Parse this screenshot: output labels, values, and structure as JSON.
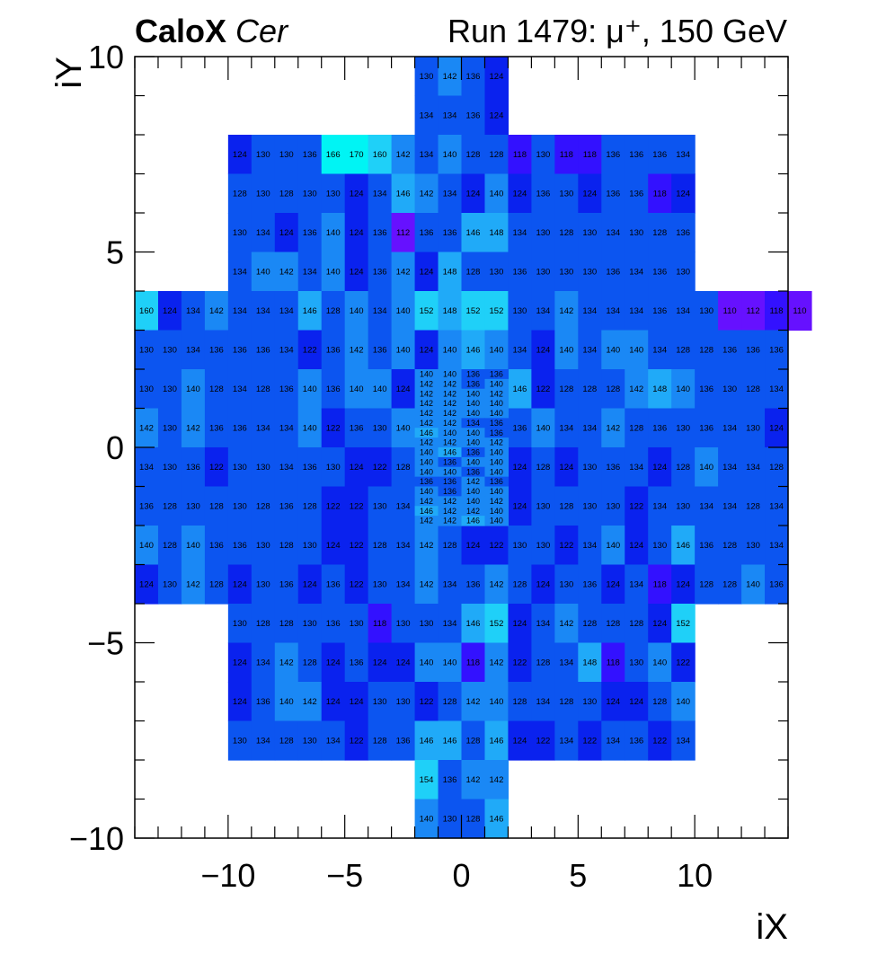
{
  "header": {
    "title_bold": "CaloX",
    "title_italic": "Cer",
    "run_info": "Run 1479:   μ⁺, 150 GeV"
  },
  "chart_data": {
    "type": "heatmap",
    "xlabel": "iX",
    "ylabel": "iY",
    "xlim": [
      -14,
      14
    ],
    "ylim": [
      -10,
      10
    ],
    "x_ticks": [
      -10,
      -5,
      0,
      5,
      10
    ],
    "y_ticks": [
      -10,
      -5,
      0,
      5,
      10
    ],
    "x_tick_labels": [
      "−10",
      "−5",
      "0",
      "5",
      "10"
    ],
    "y_tick_labels": [
      "−10",
      "−5",
      "0",
      "5",
      "10"
    ],
    "colors": {
      "c110": "#6611ff",
      "c118": "#3311ff",
      "c124": "#0a22ee",
      "c132": "#0c55f0",
      "c140": "#1a88f5",
      "c148": "#20aaf8",
      "c156": "#1fd0f8",
      "c164": "#00f4f4"
    },
    "cells": [
      {
        "y": 9.5,
        "x0": -2,
        "values": [
          130,
          142,
          136,
          124
        ]
      },
      {
        "y": 8.5,
        "x0": -2,
        "values": [
          134,
          134,
          136,
          124
        ]
      },
      {
        "y": 7.5,
        "x0": -10,
        "values": [
          124,
          130,
          130,
          136,
          166,
          170,
          160,
          142,
          134,
          140,
          128,
          128,
          118,
          130,
          118,
          118,
          136,
          136,
          136,
          134
        ]
      },
      {
        "y": 6.5,
        "x0": -10,
        "values": [
          128,
          130,
          128,
          130,
          130,
          124,
          134,
          146,
          142,
          134,
          124,
          140,
          124,
          136,
          130,
          124,
          136,
          136,
          118,
          124
        ]
      },
      {
        "y": 5.5,
        "x0": -10,
        "values": [
          130,
          134,
          124,
          136,
          140,
          124,
          136,
          112,
          136,
          136,
          146,
          148,
          134,
          130,
          128,
          130,
          134,
          130,
          128,
          136
        ]
      },
      {
        "y": 4.5,
        "x0": -10,
        "values": [
          134,
          140,
          142,
          134,
          140,
          124,
          136,
          142,
          124,
          148,
          128,
          130,
          136,
          130,
          130,
          130,
          136,
          134,
          136,
          130
        ]
      },
      {
        "y": 3.5,
        "x0": -14,
        "values": [
          160,
          124,
          134,
          142,
          134,
          134,
          134,
          146,
          128,
          140,
          134,
          140,
          152,
          148,
          152,
          152,
          130,
          134,
          142,
          134,
          134,
          134,
          136,
          134,
          130,
          110,
          112,
          118,
          110
        ]
      },
      {
        "y": 2.5,
        "x0": -14,
        "values": [
          130,
          130,
          134,
          136,
          136,
          136,
          134,
          122,
          136,
          142,
          136,
          140,
          124,
          140,
          146,
          140,
          134,
          124,
          140,
          134,
          140,
          140,
          134,
          128,
          128,
          136,
          136,
          136
        ]
      },
      {
        "y": 1.5,
        "x0": -14,
        "values": [
          130,
          130,
          140,
          128,
          134,
          128,
          136,
          140,
          136,
          140,
          140,
          124,
          null,
          null,
          null,
          null,
          146,
          122,
          128,
          128,
          128,
          142,
          148,
          140,
          136,
          130,
          128,
          134
        ]
      },
      {
        "y": 0.5,
        "x0": -14,
        "values": [
          142,
          130,
          142,
          136,
          136,
          134,
          134,
          140,
          122,
          136,
          130,
          140,
          null,
          null,
          null,
          null,
          136,
          140,
          134,
          134,
          142,
          128,
          136,
          130,
          136,
          134,
          130,
          124
        ]
      },
      {
        "y": -0.5,
        "x0": -14,
        "values": [
          134,
          130,
          136,
          122,
          130,
          130,
          134,
          136,
          130,
          124,
          122,
          128,
          null,
          null,
          null,
          null,
          124,
          128,
          124,
          130,
          136,
          134,
          124,
          128,
          140,
          134,
          134,
          128
        ]
      },
      {
        "y": -1.5,
        "x0": -14,
        "values": [
          136,
          128,
          130,
          128,
          130,
          128,
          136,
          128,
          122,
          122,
          130,
          134,
          null,
          null,
          null,
          null,
          124,
          130,
          128,
          130,
          130,
          122,
          134,
          130,
          134,
          134,
          128,
          134
        ]
      },
      {
        "y": -2.5,
        "x0": -14,
        "values": [
          140,
          128,
          140,
          136,
          136,
          130,
          128,
          130,
          124,
          122,
          128,
          134,
          142,
          128,
          124,
          122,
          130,
          130,
          122,
          134,
          140,
          124,
          130,
          146,
          136,
          128,
          130,
          134
        ]
      },
      {
        "y": -3.5,
        "x0": -14,
        "values": [
          124,
          130,
          142,
          128,
          124,
          130,
          136,
          124,
          136,
          122,
          130,
          134,
          142,
          134,
          136,
          142,
          128,
          124,
          130,
          136,
          124,
          134,
          118,
          124,
          128,
          128,
          140,
          136
        ]
      },
      {
        "y": -4.5,
        "x0": -10,
        "values": [
          130,
          128,
          128,
          130,
          136,
          130,
          118,
          130,
          130,
          134,
          146,
          152,
          124,
          134,
          142,
          128,
          128,
          128,
          124,
          152
        ]
      },
      {
        "y": -5.5,
        "x0": -10,
        "values": [
          124,
          134,
          142,
          128,
          124,
          136,
          124,
          124,
          140,
          140,
          118,
          142,
          122,
          128,
          134,
          148,
          118,
          130,
          140,
          122
        ]
      },
      {
        "y": -6.5,
        "x0": -10,
        "values": [
          124,
          136,
          140,
          142,
          124,
          124,
          130,
          130,
          122,
          128,
          142,
          140,
          128,
          134,
          128,
          130,
          124,
          124,
          128,
          140
        ]
      },
      {
        "y": -7.5,
        "x0": -10,
        "values": [
          130,
          134,
          128,
          130,
          134,
          122,
          128,
          136,
          146,
          146,
          128,
          146,
          124,
          122,
          134,
          122,
          134,
          136,
          122,
          134
        ]
      },
      {
        "y": -8.5,
        "x0": -2,
        "values": [
          154,
          136,
          142,
          142
        ]
      },
      {
        "y": -9.5,
        "x0": -2,
        "values": [
          140,
          130,
          128,
          146
        ]
      }
    ],
    "fine_cells": [
      {
        "y": 1.875,
        "x0": -2,
        "values": [
          140,
          140,
          136,
          136
        ]
      },
      {
        "y": 1.625,
        "x0": -2,
        "values": [
          142,
          142,
          136,
          140
        ]
      },
      {
        "y": 1.375,
        "x0": -2,
        "values": [
          142,
          142,
          140,
          142
        ]
      },
      {
        "y": 1.125,
        "x0": -2,
        "values": [
          142,
          142,
          140,
          140
        ]
      },
      {
        "y": 0.875,
        "x0": -2,
        "values": [
          142,
          142,
          140,
          140
        ]
      },
      {
        "y": 0.625,
        "x0": -2,
        "values": [
          142,
          142,
          134,
          136
        ]
      },
      {
        "y": 0.375,
        "x0": -2,
        "values": [
          146,
          140,
          140,
          136
        ]
      },
      {
        "y": 0.125,
        "x0": -2,
        "values": [
          142,
          142,
          140,
          142
        ]
      },
      {
        "y": -0.125,
        "x0": -2,
        "values": [
          140,
          146,
          136,
          140
        ]
      },
      {
        "y": -0.375,
        "x0": -2,
        "values": [
          140,
          136,
          140,
          140
        ]
      },
      {
        "y": -0.625,
        "x0": -2,
        "values": [
          140,
          140,
          136,
          140
        ]
      },
      {
        "y": -0.875,
        "x0": -2,
        "values": [
          136,
          136,
          142,
          136
        ]
      },
      {
        "y": -1.125,
        "x0": -2,
        "values": [
          140,
          136,
          140,
          140
        ]
      },
      {
        "y": -1.375,
        "x0": -2,
        "values": [
          142,
          142,
          140,
          142
        ]
      },
      {
        "y": -1.625,
        "x0": -2,
        "values": [
          146,
          142,
          142,
          140
        ]
      },
      {
        "y": -1.875,
        "x0": -2,
        "values": [
          142,
          142,
          146,
          140
        ]
      }
    ]
  }
}
